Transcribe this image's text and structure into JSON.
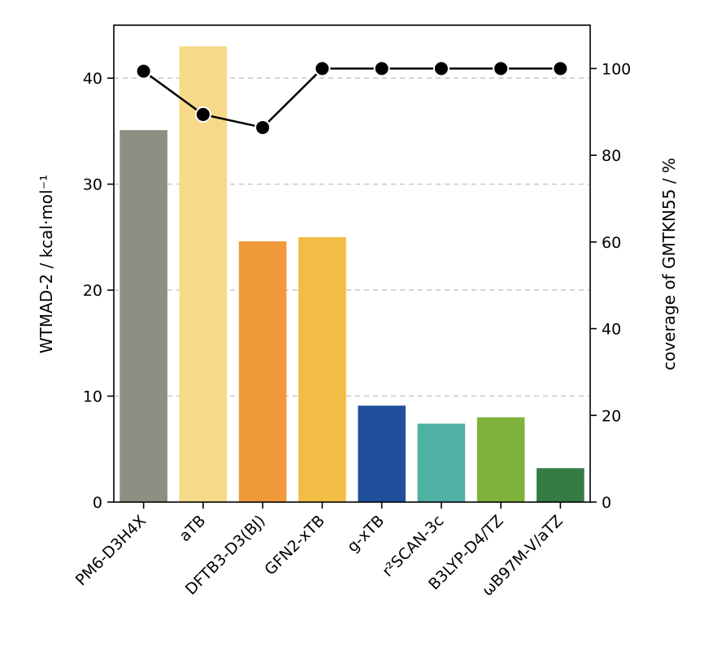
{
  "chart_data": {
    "type": "bar",
    "categories": [
      "PM6-D3H4X",
      "aTB",
      "DFTB3-D3(BJ)",
      "GFN2-xTB",
      "g-xTB",
      "r²SCAN-3c",
      "B3LYP-D4/TZ",
      "ωB97M-V/aTZ"
    ],
    "series": [
      {
        "type": "bar",
        "axis": "left",
        "values": [
          35.1,
          43.0,
          24.6,
          25.0,
          9.1,
          7.4,
          8.0,
          3.2
        ],
        "colors": [
          "#8f8e83",
          "#f7d98a",
          "#f0993a",
          "#f2bd44",
          "#20509c",
          "#4fb0a4",
          "#7fb23a",
          "#347c44"
        ]
      },
      {
        "type": "line",
        "axis": "right",
        "values": [
          99.4,
          89.4,
          86.4,
          100,
          100,
          100,
          100,
          100
        ],
        "color": "#000000"
      }
    ],
    "ylabel": "WTMAD-2 / kcal·mol⁻¹",
    "y2label": "coverage of GMTKN55 / %",
    "ylim": [
      0,
      45
    ],
    "y2lim": [
      0,
      110
    ],
    "yticks": [
      "0",
      "10",
      "20",
      "30",
      "40"
    ],
    "y2ticks": [
      "0",
      "20",
      "40",
      "60",
      "80",
      "100"
    ],
    "grid": "horizontal dashed, left axis"
  }
}
